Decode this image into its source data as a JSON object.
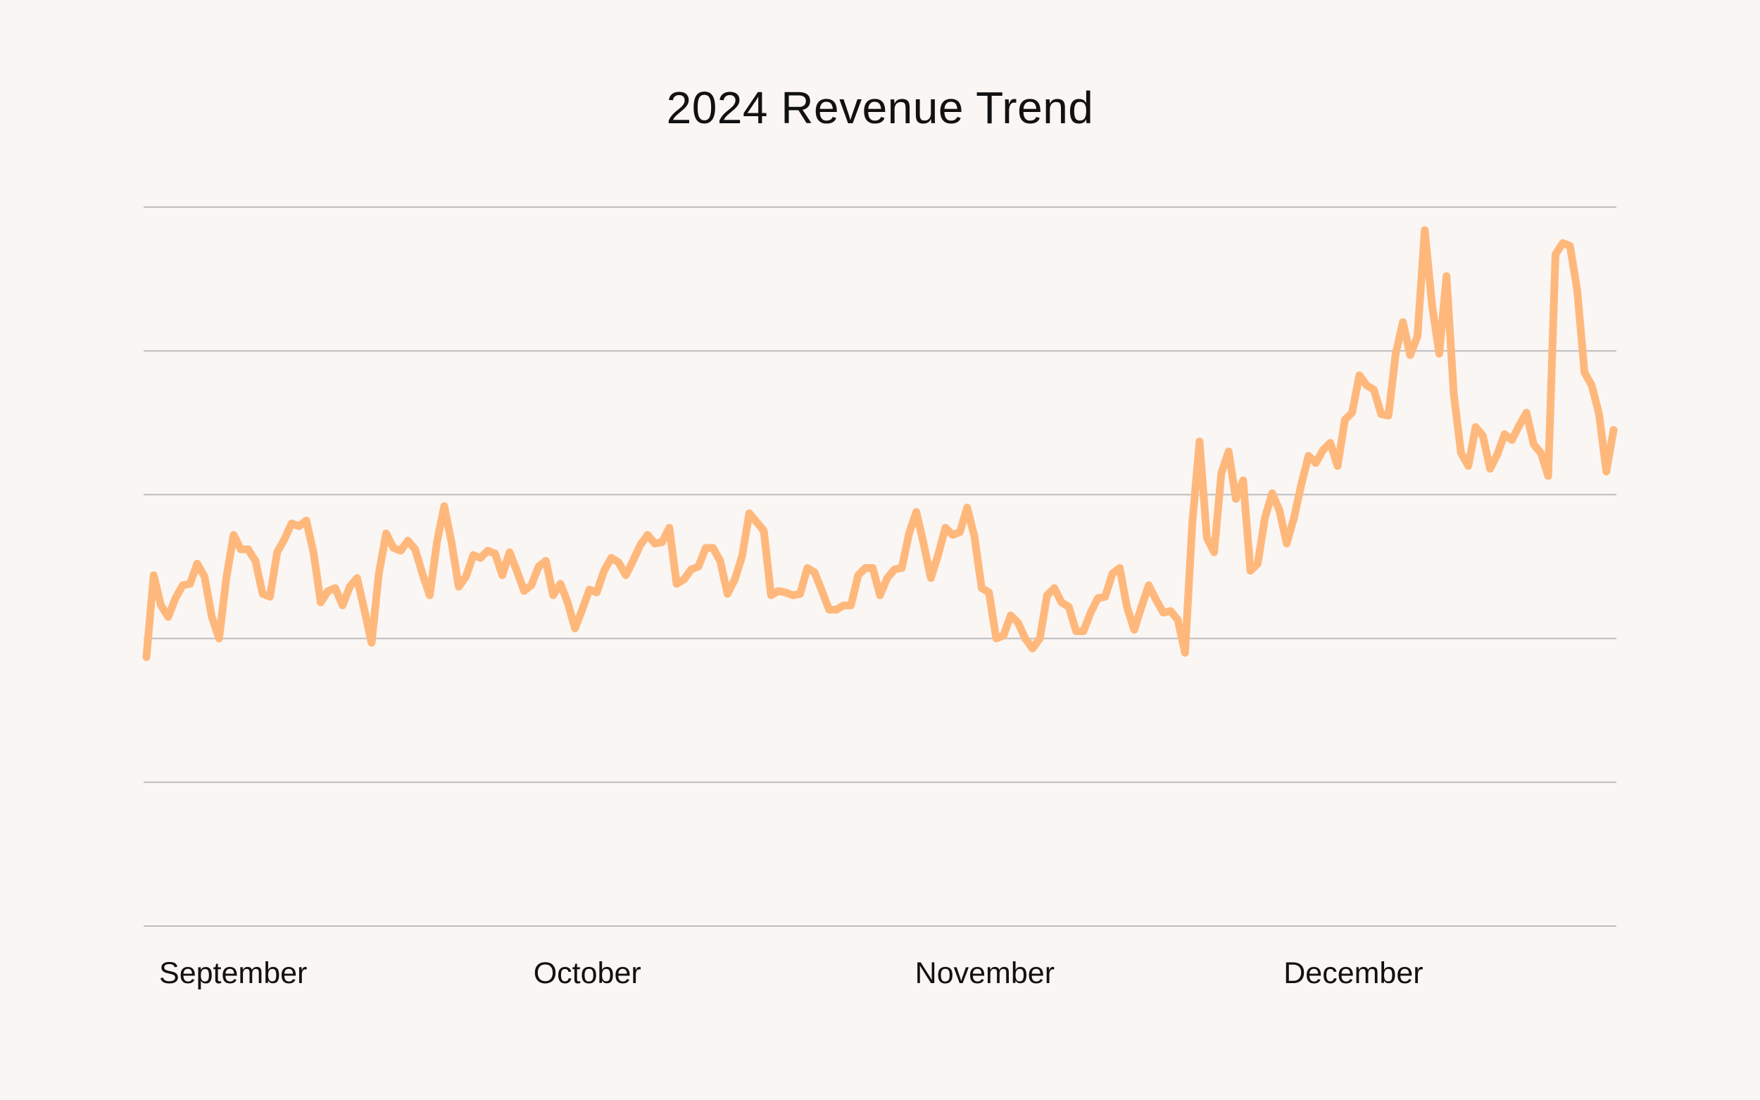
{
  "chart_data": {
    "type": "line",
    "title": "2024 Revenue Trend",
    "xlabel": "",
    "ylabel": "",
    "legend": "none",
    "grid": true,
    "ylim": [
      0,
      5
    ],
    "gridlines": [
      0,
      1,
      2,
      3,
      4,
      5
    ],
    "colors": {
      "background": "#FAF6F4",
      "line": "#FFB87C",
      "grid": "#BDBDBD",
      "text": "#111111"
    },
    "x_ticks": [
      {
        "label": "September",
        "x": 12
      },
      {
        "label": "October",
        "x": 61
      },
      {
        "label": "November",
        "x": 116
      },
      {
        "label": "December",
        "x": 167
      }
    ],
    "series": [
      {
        "name": "Revenue",
        "x_start": 0,
        "x_end": 203,
        "values": [
          1.87,
          2.44,
          2.23,
          2.15,
          2.28,
          2.37,
          2.38,
          2.52,
          2.43,
          2.15,
          2.0,
          2.42,
          2.72,
          2.62,
          2.62,
          2.54,
          2.31,
          2.29,
          2.6,
          2.69,
          2.8,
          2.78,
          2.82,
          2.6,
          2.25,
          2.33,
          2.35,
          2.23,
          2.36,
          2.42,
          2.2,
          1.97,
          2.45,
          2.73,
          2.63,
          2.61,
          2.68,
          2.62,
          2.45,
          2.3,
          2.67,
          2.92,
          2.67,
          2.36,
          2.43,
          2.58,
          2.56,
          2.61,
          2.59,
          2.44,
          2.6,
          2.47,
          2.33,
          2.37,
          2.5,
          2.54,
          2.3,
          2.38,
          2.25,
          2.07,
          2.2,
          2.34,
          2.32,
          2.47,
          2.56,
          2.53,
          2.44,
          2.54,
          2.65,
          2.72,
          2.66,
          2.67,
          2.77,
          2.38,
          2.41,
          2.48,
          2.5,
          2.63,
          2.63,
          2.54,
          2.31,
          2.41,
          2.57,
          2.87,
          2.81,
          2.75,
          2.3,
          2.33,
          2.32,
          2.3,
          2.31,
          2.49,
          2.46,
          2.33,
          2.2,
          2.2,
          2.23,
          2.23,
          2.44,
          2.49,
          2.49,
          2.3,
          2.42,
          2.48,
          2.49,
          2.73,
          2.88,
          2.66,
          2.42,
          2.58,
          2.77,
          2.72,
          2.74,
          2.91,
          2.71,
          2.35,
          2.32,
          2.0,
          2.02,
          2.16,
          2.11,
          2.0,
          1.93,
          2.0,
          2.3,
          2.35,
          2.25,
          2.22,
          2.05,
          2.05,
          2.18,
          2.28,
          2.29,
          2.45,
          2.49,
          2.22,
          2.06,
          2.22,
          2.37,
          2.27,
          2.18,
          2.19,
          2.13,
          1.9,
          2.8,
          3.37,
          2.7,
          2.6,
          3.15,
          3.3,
          2.97,
          3.1,
          2.47,
          2.52,
          2.84,
          3.01,
          2.89,
          2.66,
          2.84,
          3.07,
          3.27,
          3.22,
          3.31,
          3.36,
          3.2,
          3.52,
          3.57,
          3.83,
          3.76,
          3.73,
          3.56,
          3.55,
          3.98,
          4.2,
          3.97,
          4.1,
          4.84,
          4.32,
          3.98,
          4.52,
          3.7,
          3.29,
          3.2,
          3.47,
          3.41,
          3.18,
          3.28,
          3.42,
          3.38,
          3.48,
          3.57,
          3.35,
          3.29,
          3.13,
          4.67,
          4.75,
          4.73,
          4.42,
          3.85,
          3.76,
          3.56,
          3.16,
          3.45
        ]
      }
    ]
  }
}
